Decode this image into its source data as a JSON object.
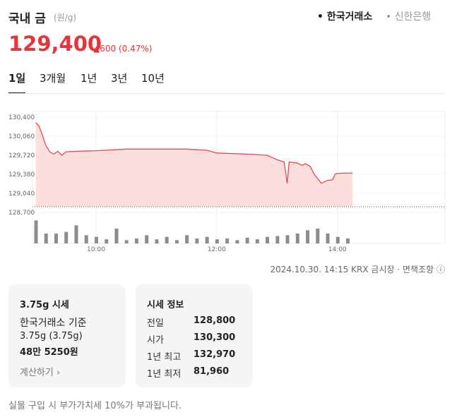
{
  "header": {
    "title": "국내 금",
    "unit": "(원/g)",
    "sources": [
      "한국거래소",
      "신한은행"
    ]
  },
  "price": {
    "value": "129,400",
    "change": "600",
    "change_pct": "(0.47%)"
  },
  "tabs": [
    "1일",
    "3개월",
    "1년",
    "3년",
    "10년"
  ],
  "chart_data": [
    {
      "type": "line",
      "color": "#e5484d",
      "fill_color": "#fcdede",
      "baseline": 128800,
      "x": [
        "09:00",
        "09:03",
        "09:06",
        "09:10",
        "09:14",
        "09:18",
        "09:22",
        "09:26",
        "09:30",
        "09:40",
        "10:00",
        "10:30",
        "11:00",
        "11:30",
        "11:50",
        "12:00",
        "12:30",
        "12:50",
        "13:00",
        "13:07",
        "13:10",
        "13:12",
        "13:20",
        "13:25",
        "13:28",
        "13:33",
        "13:37",
        "13:44",
        "13:50",
        "13:55",
        "13:58",
        "14:05",
        "14:15"
      ],
      "values": [
        130300,
        130250,
        130120,
        129900,
        129780,
        129740,
        129790,
        129720,
        129780,
        129790,
        129800,
        129830,
        129830,
        129830,
        129810,
        129760,
        129740,
        129720,
        129640,
        129600,
        129220,
        129600,
        129580,
        129540,
        129570,
        129520,
        129380,
        129220,
        129270,
        129280,
        129390,
        129400,
        129400
      ],
      "xlim": [
        "09:00",
        "15:30"
      ],
      "ylim": [
        128700,
        130400
      ],
      "yticks": [
        {
          "value": 130400,
          "label": "130,400"
        },
        {
          "value": 130060,
          "label": "130,060"
        },
        {
          "value": 129720,
          "label": "129,720"
        },
        {
          "value": 129380,
          "label": "129,380"
        },
        {
          "value": 129040,
          "label": "129,040"
        },
        {
          "value": 128700,
          "label": "128,700"
        }
      ]
    },
    {
      "type": "bar",
      "color": "#8c8c8c",
      "x": [
        "09:00",
        "09:10",
        "09:20",
        "09:30",
        "09:40",
        "09:50",
        "10:00",
        "10:10",
        "10:20",
        "10:30",
        "10:40",
        "10:50",
        "11:00",
        "11:10",
        "11:20",
        "11:30",
        "11:40",
        "11:50",
        "12:00",
        "12:10",
        "12:20",
        "12:30",
        "12:40",
        "12:50",
        "13:00",
        "13:10",
        "13:20",
        "13:30",
        "13:40",
        "13:50",
        "14:00",
        "14:10"
      ],
      "values": [
        28,
        12,
        12,
        14,
        22,
        10,
        8,
        5,
        18,
        4,
        6,
        10,
        5,
        8,
        4,
        10,
        6,
        8,
        5,
        6,
        4,
        7,
        5,
        8,
        9,
        10,
        12,
        16,
        18,
        12,
        8,
        6
      ],
      "xlim": [
        "09:00",
        "15:30"
      ],
      "ylim": [
        0,
        30
      ],
      "xticks": [
        "10:00",
        "12:00",
        "14:00"
      ]
    }
  ],
  "timestamp": "2024.10.30. 14:15 KRX 금시장",
  "disclaimer": "면책조항",
  "card1": {
    "title": "3.75g 시세",
    "basis": "한국거래소 기준",
    "weight": "3.75g (3.75g)",
    "amount": "48만 5250원",
    "link": "계산하기"
  },
  "card2": {
    "title": "시세 정보",
    "rows": [
      [
        "전일",
        "128,800"
      ],
      [
        "시가",
        "130,300"
      ],
      [
        "1년 최고",
        "132,970"
      ],
      [
        "1년 최저",
        "81,960"
      ]
    ]
  },
  "footnote": "실물 구입 시 부가가치세 10%가 부과됩니다."
}
